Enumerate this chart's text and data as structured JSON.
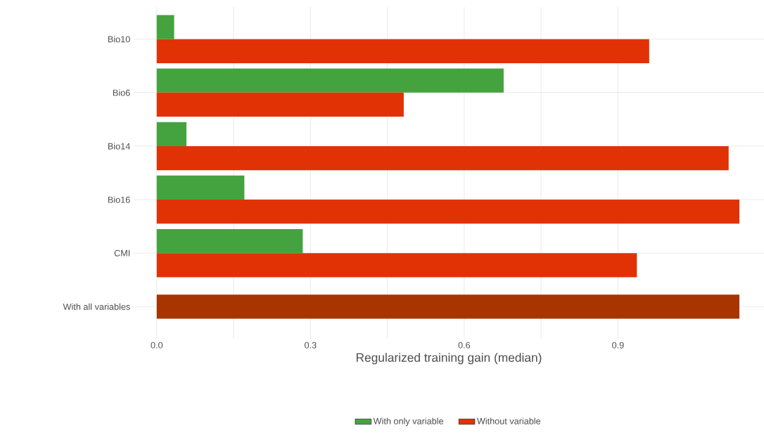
{
  "chart_data": {
    "type": "bar",
    "orientation": "horizontal",
    "categories": [
      "Bio10",
      "Bio6",
      "Bio14",
      "Bio16",
      "CMI",
      "With all variables"
    ],
    "series": [
      {
        "name": "With only variable",
        "color": "#45a33f",
        "values": [
          0.034,
          0.677,
          0.058,
          0.171,
          0.285,
          null
        ]
      },
      {
        "name": "Without variable",
        "color": "#e13205",
        "colors": [
          "#e13205",
          "#e13205",
          "#e13205",
          "#e13205",
          "#e13205",
          "#a83400"
        ],
        "values": [
          0.961,
          0.482,
          1.116,
          1.137,
          0.937,
          1.137
        ]
      }
    ],
    "xlabel": "Regularized training gain (median)",
    "xlim": [
      -0.045,
      1.185
    ],
    "xticks": [
      {
        "value": 0,
        "label": "0.0"
      },
      0.3,
      0.6,
      0.9
    ],
    "grid": true,
    "legend": "bottom"
  }
}
